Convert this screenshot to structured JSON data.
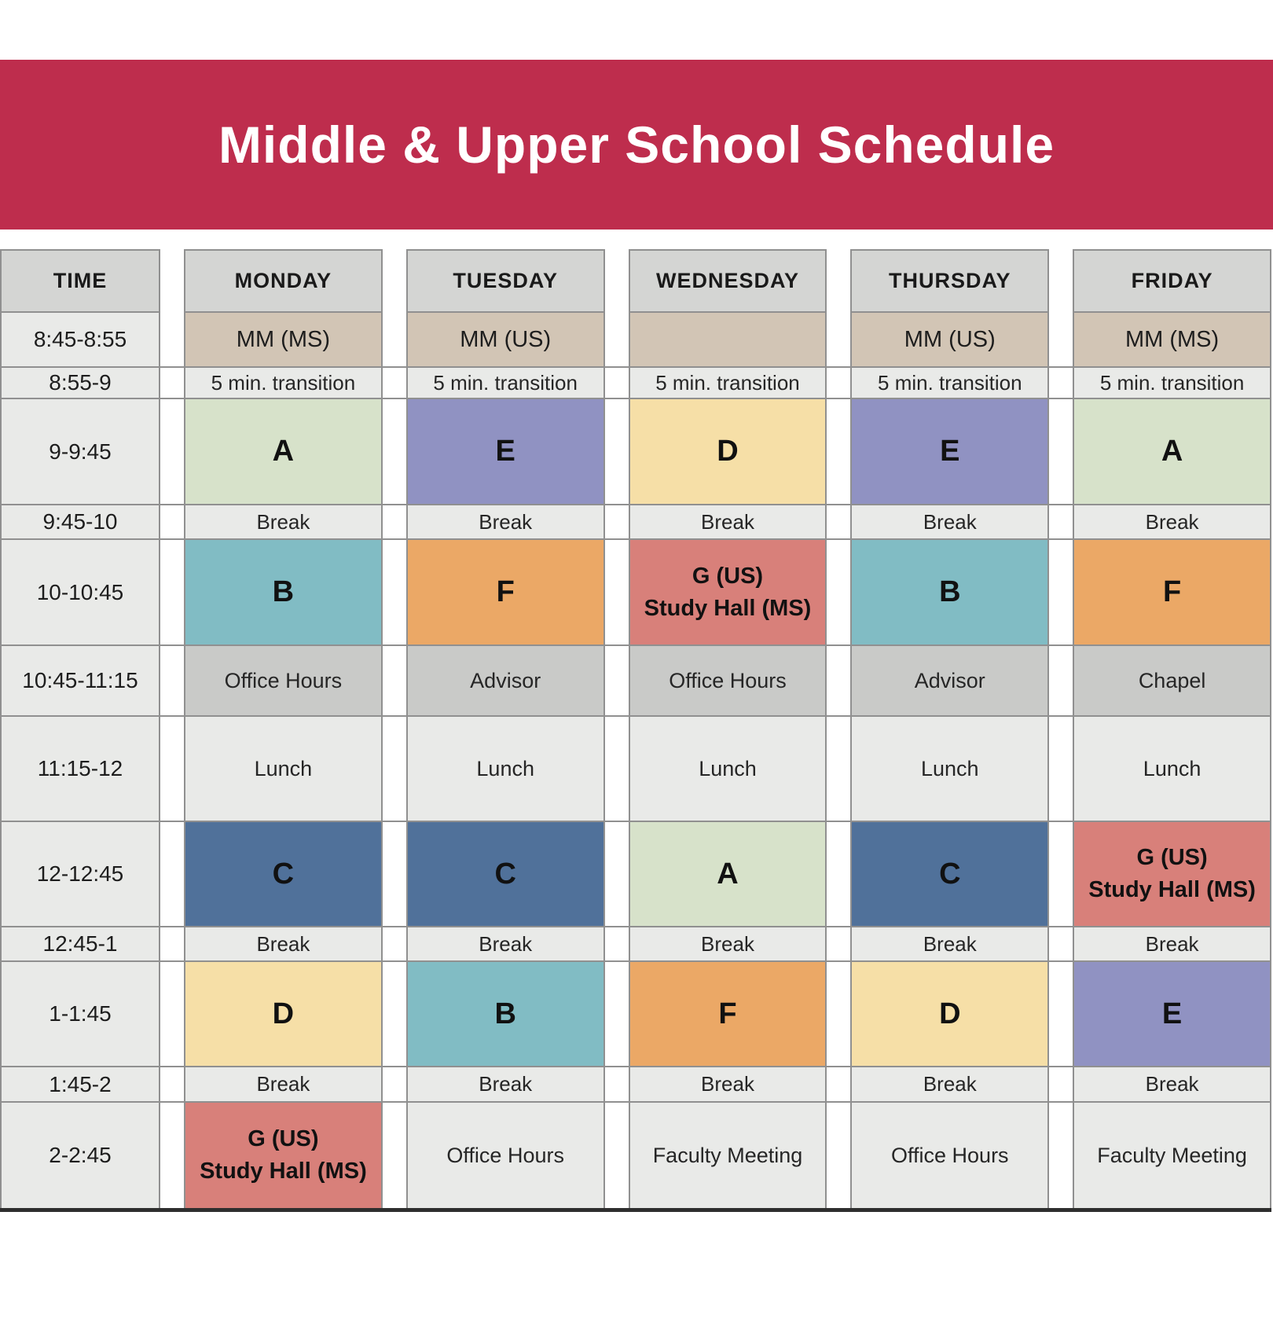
{
  "title": "Middle & Upper School Schedule",
  "columns": [
    "TIME",
    "MONDAY",
    "TUESDAY",
    "WEDNESDAY",
    "THURSDAY",
    "FRIDAY"
  ],
  "rows": [
    {
      "time": "8:45-8:55",
      "cells": [
        "MM (MS)",
        "MM (US)",
        "",
        "MM (US)",
        "MM (MS)"
      ]
    },
    {
      "time": "8:55-9",
      "cells": [
        "5 min. transition",
        "5 min. transition",
        "5 min. transition",
        "5 min. transition",
        "5 min. transition"
      ]
    },
    {
      "time": "9-9:45",
      "cells": [
        "A",
        "E",
        "D",
        "E",
        "A"
      ]
    },
    {
      "time": "9:45-10",
      "cells": [
        "Break",
        "Break",
        "Break",
        "Break",
        "Break"
      ]
    },
    {
      "time": "10-10:45",
      "cells": [
        "B",
        "F",
        "G (US)\nStudy Hall (MS)",
        "B",
        "F"
      ]
    },
    {
      "time": "10:45-11:15",
      "cells": [
        "Office Hours",
        "Advisor",
        "Office Hours",
        "Advisor",
        "Chapel"
      ]
    },
    {
      "time": "11:15-12",
      "cells": [
        "Lunch",
        "Lunch",
        "Lunch",
        "Lunch",
        "Lunch"
      ]
    },
    {
      "time": "12-12:45",
      "cells": [
        "C",
        "C",
        "A",
        "C",
        "G (US)\nStudy Hall (MS)"
      ]
    },
    {
      "time": "12:45-1",
      "cells": [
        "Break",
        "Break",
        "Break",
        "Break",
        "Break"
      ]
    },
    {
      "time": "1-1:45",
      "cells": [
        "D",
        "B",
        "F",
        "D",
        "E"
      ]
    },
    {
      "time": "1:45-2",
      "cells": [
        "Break",
        "Break",
        "Break",
        "Break",
        "Break"
      ]
    },
    {
      "time": "2-2:45",
      "cells": [
        "G (US)\nStudy Hall (MS)",
        "Office Hours",
        "Faculty Meeting",
        "Office Hours",
        "Faculty Meeting"
      ]
    }
  ],
  "palette": {
    "banner_red": "#be2d4d",
    "header_gray": "#d4d5d3",
    "mm_tan": "#d2c5b5",
    "row_light": "#e9eae8",
    "meeting_gray": "#c9cac8",
    "A": "#d7e2ca",
    "B": "#81bcc4",
    "C": "#50719a",
    "D": "#f6dfa7",
    "E": "#9092c2",
    "F": "#eba866",
    "G": "#d8807a"
  }
}
